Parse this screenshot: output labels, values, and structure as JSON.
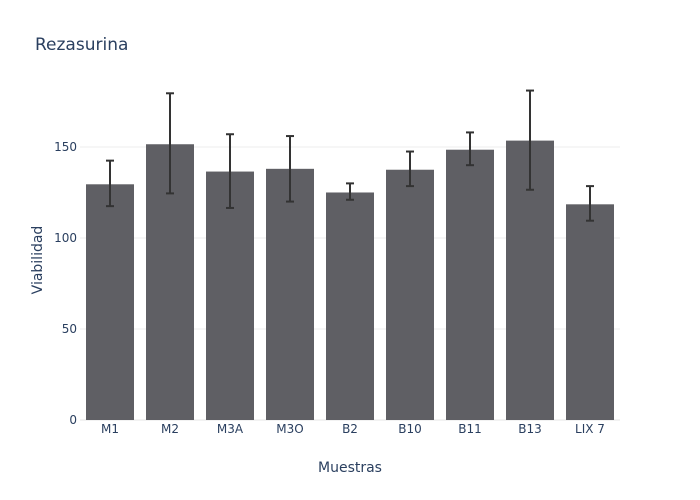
{
  "chart_data": {
    "type": "bar",
    "title": "Rezasurina",
    "xlabel": "Muestras",
    "ylabel": "Viabilidad",
    "categories": [
      "M1",
      "M2",
      "M3A",
      "M3O",
      "B2",
      "B10",
      "B11",
      "B13",
      "LIX 7"
    ],
    "values": [
      129.5,
      151.5,
      136.5,
      138,
      125,
      137.5,
      148.5,
      153.5,
      118.5
    ],
    "error_plus": [
      13,
      28,
      20.5,
      18,
      5,
      10,
      9.5,
      27.5,
      10
    ],
    "error_minus": [
      12,
      27,
      20,
      18,
      4,
      9,
      8.5,
      27,
      9
    ],
    "ylim": [
      0,
      186.8
    ],
    "yticks": [
      0,
      50,
      100,
      150
    ],
    "grid": true,
    "legend": false,
    "colors": {
      "bar": "#5f5f64",
      "error_bar": "#333333",
      "text": "#2a3f5f",
      "grid": "#eeeeee"
    }
  }
}
